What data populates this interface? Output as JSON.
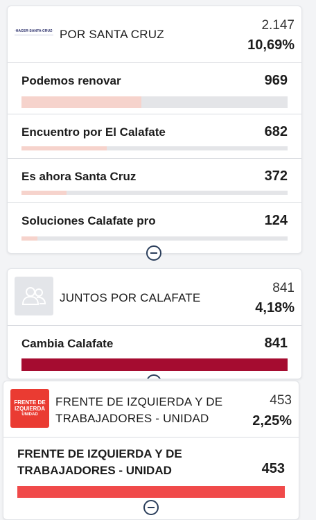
{
  "colors": {
    "bar_light": "#f6d3cc",
    "bar_dark": "#a50c30",
    "bar_red": "#f04a4a",
    "bar_track": "#e4e5e8",
    "fit_logo": "#ea3b32"
  },
  "cards": [
    {
      "logo_icon": "hacer-santa-cruz-logo",
      "logo_text": "HACER SANTA CRUZ",
      "party": "POR SANTA CRUZ",
      "votes": "2.147",
      "percent": "10,69%",
      "rows": [
        {
          "name": "Podemos renovar",
          "votes": "969",
          "share": 0.45
        },
        {
          "name": "Encuentro por El Calafate",
          "votes": "682",
          "share": 0.32
        },
        {
          "name": "Es ahora Santa Cruz",
          "votes": "372",
          "share": 0.17
        },
        {
          "name": "Soluciones Calafate pro",
          "votes": "124",
          "share": 0.06
        }
      ]
    },
    {
      "logo_icon": "group-placeholder-icon",
      "party": "JUNTOS POR CALAFATE",
      "votes": "841",
      "percent": "4,18%",
      "rows": [
        {
          "name": "Cambia Calafate",
          "votes": "841",
          "share": 1.0
        }
      ]
    },
    {
      "logo_icon": "frente-de-izquierda-logo",
      "logo_lines": [
        "FRENTE DE",
        "IZQUIERDA",
        "UNIDAD"
      ],
      "party_line1": "FRENTE DE IZQUIERDA Y DE",
      "party_line2": "TRABAJADORES - UNIDAD",
      "votes": "453",
      "percent": "2,25%",
      "rows": [
        {
          "name_line1": "FRENTE DE IZQUIERDA Y DE",
          "name_line2": "TRABAJADORES - UNIDAD",
          "votes": "453",
          "share": 1.0
        }
      ]
    }
  ]
}
